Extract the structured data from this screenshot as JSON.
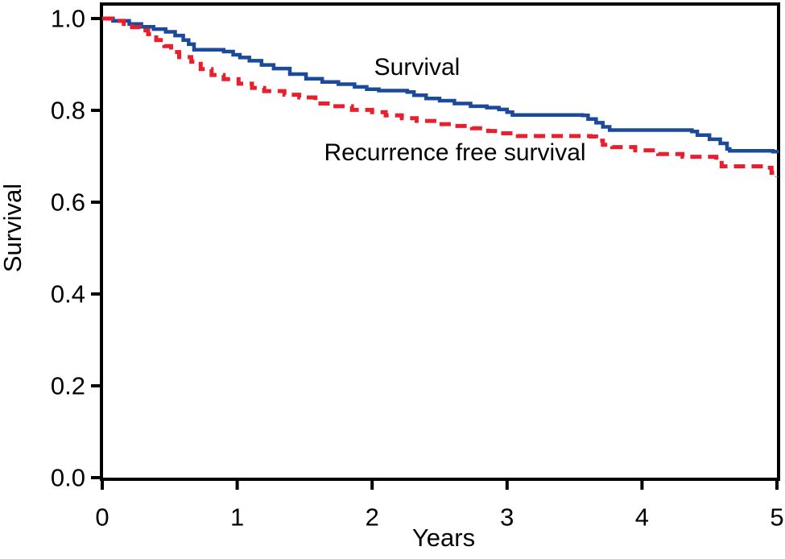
{
  "figure": {
    "background": "#ffffff",
    "text_color": "#000000"
  },
  "chart_data": {
    "type": "line",
    "subtype": "kaplan-meier-step",
    "title": "",
    "xlabel": "Years",
    "ylabel": "Survival",
    "xlim": [
      0,
      5
    ],
    "ylim": [
      0.0,
      1.0
    ],
    "x_ticks": [
      "0",
      "1",
      "2",
      "3",
      "4",
      "5"
    ],
    "y_ticks": [
      "0.0",
      "0.2",
      "0.4",
      "0.6",
      "0.8",
      "1.0"
    ],
    "grid": false,
    "legend_position": "in-plot-text",
    "axis_color": "#000000",
    "series": [
      {
        "name": "Survival",
        "color": "#1b4a9b",
        "line_style": "solid",
        "points": [
          [
            0.0,
            1.0
          ],
          [
            0.08,
            0.995
          ],
          [
            0.2,
            0.988
          ],
          [
            0.29,
            0.982
          ],
          [
            0.38,
            0.977
          ],
          [
            0.47,
            0.971
          ],
          [
            0.54,
            0.963
          ],
          [
            0.6,
            0.953
          ],
          [
            0.64,
            0.944
          ],
          [
            0.68,
            0.932
          ],
          [
            0.9,
            0.928
          ],
          [
            0.97,
            0.921
          ],
          [
            1.02,
            0.915
          ],
          [
            1.09,
            0.908
          ],
          [
            1.18,
            0.899
          ],
          [
            1.27,
            0.891
          ],
          [
            1.39,
            0.879
          ],
          [
            1.51,
            0.869
          ],
          [
            1.63,
            0.862
          ],
          [
            1.75,
            0.857
          ],
          [
            1.87,
            0.851
          ],
          [
            1.96,
            0.846
          ],
          [
            2.05,
            0.843
          ],
          [
            2.26,
            0.84
          ],
          [
            2.31,
            0.833
          ],
          [
            2.4,
            0.826
          ],
          [
            2.5,
            0.821
          ],
          [
            2.61,
            0.815
          ],
          [
            2.73,
            0.809
          ],
          [
            2.85,
            0.806
          ],
          [
            2.94,
            0.802
          ],
          [
            3.0,
            0.796
          ],
          [
            3.04,
            0.79
          ],
          [
            3.56,
            0.789
          ],
          [
            3.6,
            0.781
          ],
          [
            3.66,
            0.773
          ],
          [
            3.71,
            0.764
          ],
          [
            3.76,
            0.757
          ],
          [
            4.37,
            0.754
          ],
          [
            4.41,
            0.746
          ],
          [
            4.5,
            0.737
          ],
          [
            4.58,
            0.728
          ],
          [
            4.63,
            0.716
          ],
          [
            4.65,
            0.712
          ],
          [
            4.97,
            0.71
          ],
          [
            5.0,
            0.707
          ]
        ]
      },
      {
        "name": "Recurrence free survival",
        "color": "#e8202d",
        "line_style": "dashed",
        "points": [
          [
            0.0,
            1.0
          ],
          [
            0.07,
            0.995
          ],
          [
            0.16,
            0.988
          ],
          [
            0.22,
            0.981
          ],
          [
            0.28,
            0.974
          ],
          [
            0.34,
            0.966
          ],
          [
            0.4,
            0.953
          ],
          [
            0.46,
            0.94
          ],
          [
            0.51,
            0.927
          ],
          [
            0.57,
            0.916
          ],
          [
            0.66,
            0.906
          ],
          [
            0.73,
            0.89
          ],
          [
            0.81,
            0.877
          ],
          [
            0.9,
            0.868
          ],
          [
            1.01,
            0.858
          ],
          [
            1.11,
            0.849
          ],
          [
            1.2,
            0.842
          ],
          [
            1.35,
            0.834
          ],
          [
            1.46,
            0.828
          ],
          [
            1.58,
            0.815
          ],
          [
            1.7,
            0.809
          ],
          [
            1.85,
            0.801
          ],
          [
            2.0,
            0.796
          ],
          [
            2.1,
            0.789
          ],
          [
            2.22,
            0.783
          ],
          [
            2.33,
            0.777
          ],
          [
            2.48,
            0.77
          ],
          [
            2.6,
            0.766
          ],
          [
            2.74,
            0.761
          ],
          [
            2.86,
            0.755
          ],
          [
            2.95,
            0.75
          ],
          [
            3.08,
            0.744
          ],
          [
            3.62,
            0.743
          ],
          [
            3.66,
            0.734
          ],
          [
            3.71,
            0.725
          ],
          [
            3.78,
            0.72
          ],
          [
            3.95,
            0.713
          ],
          [
            4.12,
            0.705
          ],
          [
            4.3,
            0.699
          ],
          [
            4.55,
            0.697
          ],
          [
            4.59,
            0.678
          ],
          [
            4.91,
            0.675
          ],
          [
            4.96,
            0.664
          ],
          [
            5.0,
            0.655
          ]
        ]
      }
    ],
    "annotations": [
      {
        "text": "Survival",
        "x": 2.26,
        "y": 0.895
      },
      {
        "text": "Recurrence free survival",
        "x": 2.61,
        "y": 0.705
      }
    ]
  }
}
